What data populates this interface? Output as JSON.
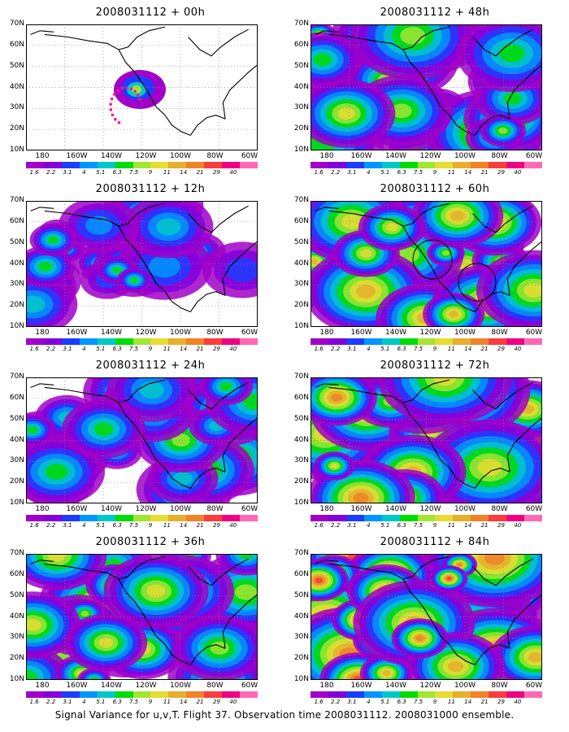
{
  "panels": [
    {
      "title": "2008031112 + 00h",
      "intensity": 0.05,
      "col": 0,
      "row": 0,
      "track": true
    },
    {
      "title": "2008031112 + 12h",
      "intensity": 0.25,
      "col": 0,
      "row": 1
    },
    {
      "title": "2008031112 + 24h",
      "intensity": 0.4,
      "col": 0,
      "row": 2
    },
    {
      "title": "2008031112 + 36h",
      "intensity": 0.5,
      "col": 0,
      "row": 3
    },
    {
      "title": "2008031112 + 48h",
      "intensity": 0.55,
      "col": 1,
      "row": 0
    },
    {
      "title": "2008031112 + 60h",
      "intensity": 0.6,
      "col": 1,
      "row": 1,
      "circles": true
    },
    {
      "title": "2008031112 + 72h",
      "intensity": 0.7,
      "col": 1,
      "row": 2
    },
    {
      "title": "2008031112 + 84h",
      "intensity": 0.85,
      "col": 1,
      "row": 3
    }
  ],
  "lat_labels": [
    "70N",
    "60N",
    "50N",
    "40N",
    "30N",
    "20N",
    "10N"
  ],
  "lon_labels": [
    "180",
    "160W",
    "140W",
    "120W",
    "100W",
    "80W",
    "60W"
  ],
  "colorbar": {
    "labels": [
      "1.6",
      "2.2",
      "3.1",
      "4",
      "5.1",
      "6.3",
      "7.5",
      "9",
      "11",
      "14",
      "21",
      "29",
      "40"
    ],
    "colors": [
      "#a000c8",
      "#8200dc",
      "#1e3cff",
      "#0096ff",
      "#00c8c8",
      "#00dc00",
      "#a0e632",
      "#e6dc32",
      "#e6af2d",
      "#f08228",
      "#fa3c3c",
      "#f00082",
      "#ff69b4"
    ]
  },
  "caption": "Signal Variance for u,v,T. Flight 37. Observation time 2008031112. 2008031000 ensemble."
}
